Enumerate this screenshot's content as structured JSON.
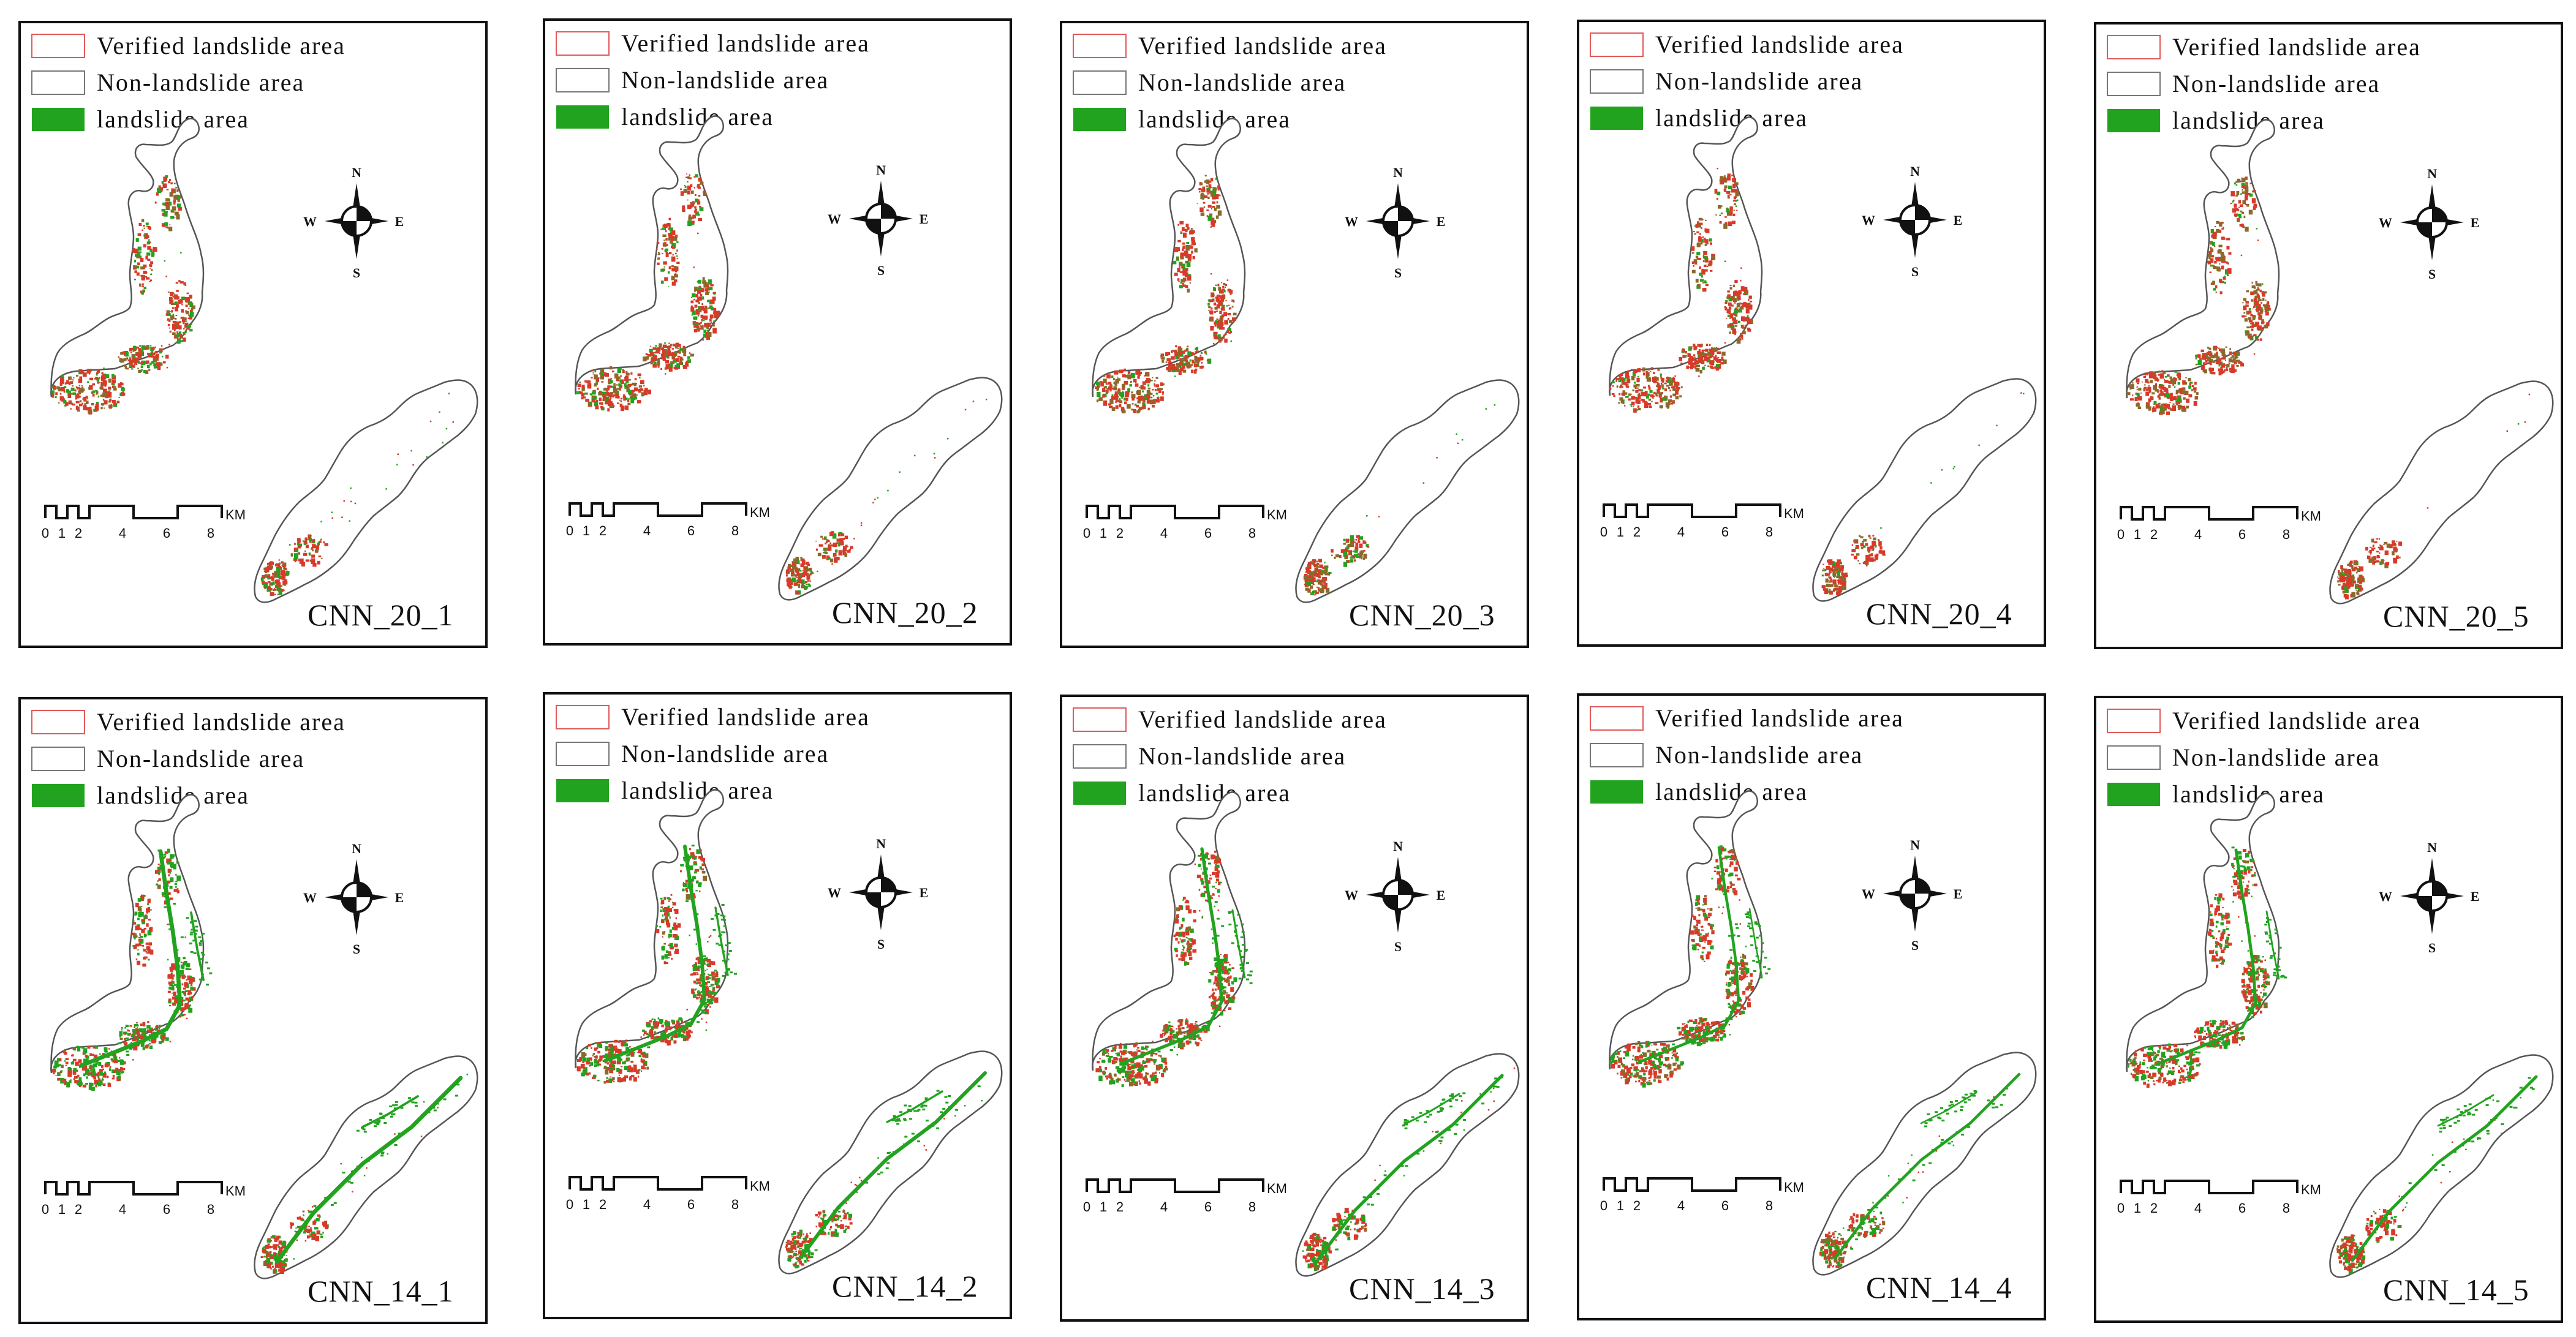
{
  "legend": {
    "verified": "Verified landslide area",
    "non_landslide": "Non-landslide area",
    "landslide": "landslide area"
  },
  "compass": {
    "north": "N",
    "south": "S",
    "east": "E",
    "west": "W"
  },
  "scale_bar": {
    "unit": "KM",
    "ticks": [
      "0",
      "1",
      "2",
      "4",
      "6",
      "8"
    ]
  },
  "colors": {
    "verified_outline": "#e05a5a",
    "non_landslide_outline": "#777777",
    "landslide_fill": "#22a31f",
    "verified_spot": "#d83a2a",
    "mixed_spot": "#8a6a2a"
  },
  "panels": [
    {
      "title": "CNN_20_1",
      "group": "20",
      "intensity": 0.55
    },
    {
      "title": "CNN_20_2",
      "group": "20",
      "intensity": 0.45
    },
    {
      "title": "CNN_20_3",
      "group": "20",
      "intensity": 0.3
    },
    {
      "title": "CNN_20_4",
      "group": "20",
      "intensity": 0.25
    },
    {
      "title": "CNN_20_5",
      "group": "20",
      "intensity": 0.2
    },
    {
      "title": "CNN_14_1",
      "group": "14",
      "intensity": 0.95
    },
    {
      "title": "CNN_14_2",
      "group": "14",
      "intensity": 0.85
    },
    {
      "title": "CNN_14_3",
      "group": "14",
      "intensity": 0.75
    },
    {
      "title": "CNN_14_4",
      "group": "14",
      "intensity": 0.65
    },
    {
      "title": "CNN_14_5",
      "group": "14",
      "intensity": 0.7
    }
  ]
}
